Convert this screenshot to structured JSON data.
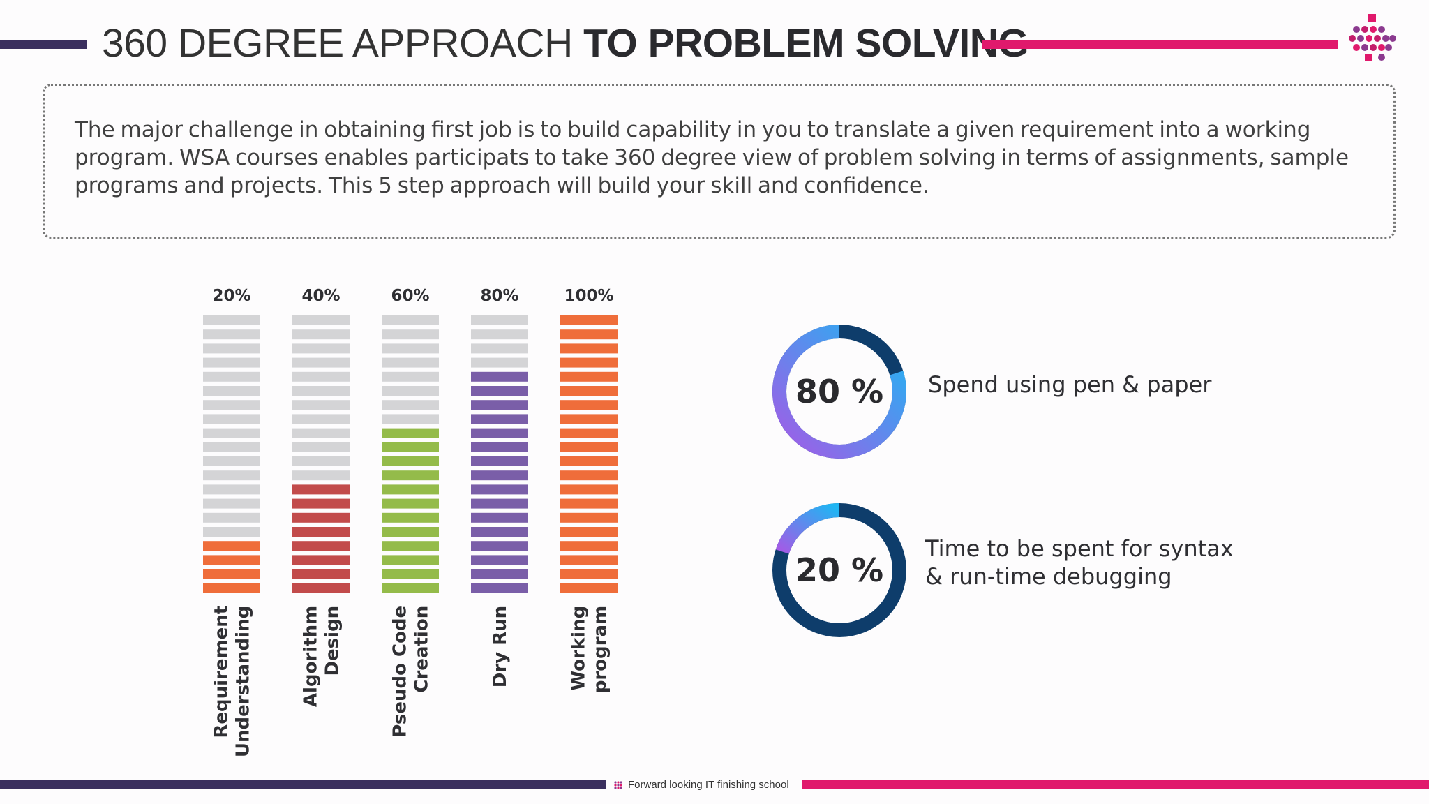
{
  "header": {
    "title_light": "360 DEGREE APPROACH",
    "title_bold": "TO PROBLEM SOLVING",
    "accent_dark": "#3a2f5e",
    "accent_pink": "#e0196c"
  },
  "description": "The major challenge in obtaining first job is to build capability in you to translate a given requirement into a working program. WSA courses enables participats to take 360 degree view of problem solving in terms of assignments, sample programs and projects. This 5 step approach will build your skill and confidence.",
  "chart_data": {
    "type": "bar",
    "categories": [
      [
        "Requirement",
        "Understanding"
      ],
      [
        "Algorithm",
        "Design"
      ],
      [
        "Pseudo Code",
        "Creation"
      ],
      [
        "Dry Run"
      ],
      [
        "Working",
        "program"
      ]
    ],
    "values": [
      20,
      40,
      60,
      80,
      100
    ],
    "value_labels": [
      "20%",
      "40%",
      "60%",
      "80%",
      "100%"
    ],
    "ylim": [
      0,
      100
    ],
    "colors": [
      "#ef6d3a",
      "#c24b4b",
      "#94bb4a",
      "#7a5ea8",
      "#ef6d3a"
    ],
    "empty_color": "#d4d4d6",
    "grid": false
  },
  "stats": [
    {
      "value_label": "80 %",
      "percent": 80,
      "label_lines": [
        "Spend using pen & paper"
      ]
    },
    {
      "value_label": "20 %",
      "percent": 20,
      "label_lines": [
        "Time to be spent for syntax",
        "& run-time debugging"
      ]
    }
  ],
  "footer": {
    "tagline": "Forward looking IT finishing school"
  }
}
